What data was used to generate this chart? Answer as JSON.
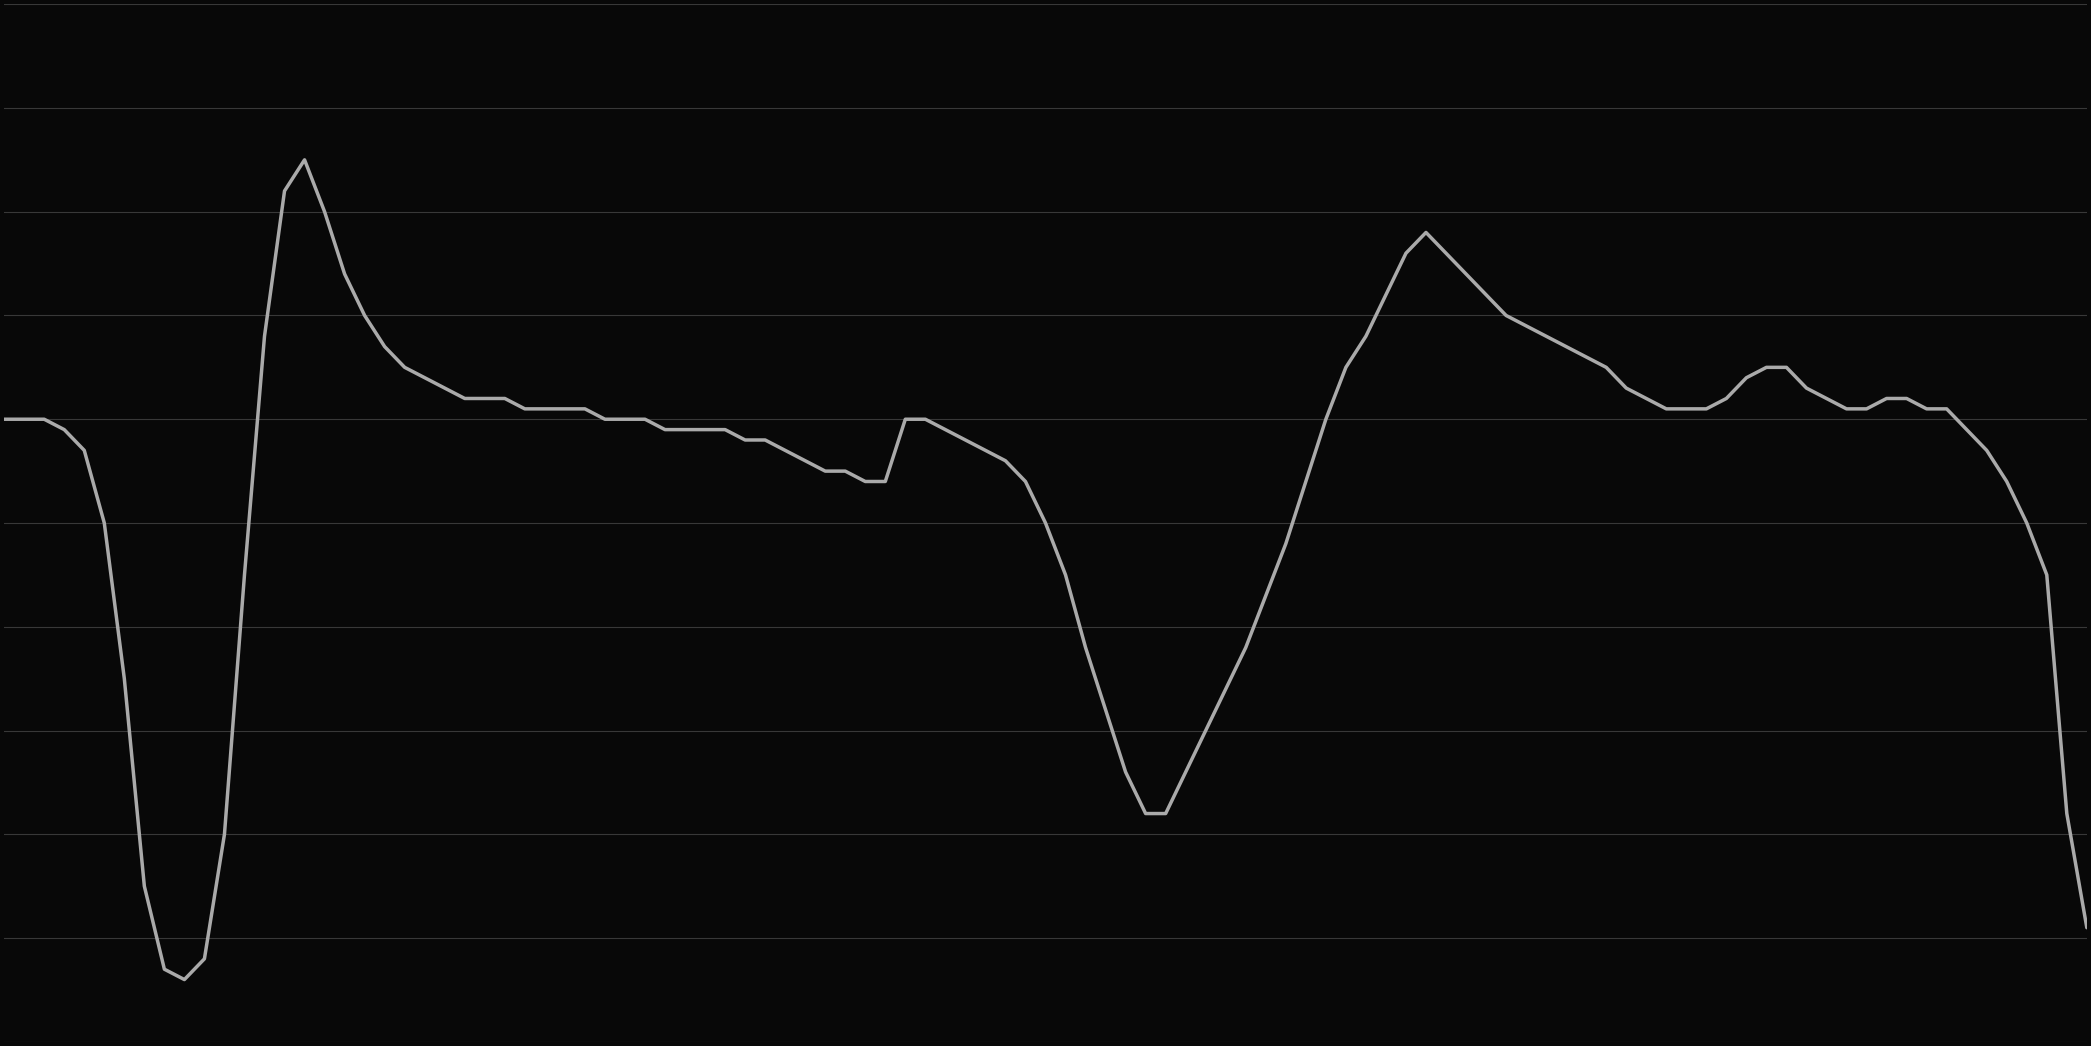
{
  "background_color": "#080808",
  "line_color": "#aaaaaa",
  "grid_color": "#383838",
  "line_width": 2.5,
  "figsize": [
    20.91,
    10.46
  ],
  "dpi": 100,
  "ylim": [
    -40,
    60
  ],
  "ytick_values": [
    -40,
    -30,
    -20,
    -10,
    0,
    10,
    20,
    30,
    40,
    50,
    60
  ],
  "values_y": [
    20,
    20,
    20,
    19,
    17,
    10,
    -5,
    -25,
    -33,
    -34,
    -32,
    -20,
    5,
    28,
    42,
    45,
    40,
    34,
    30,
    27,
    25,
    24,
    23,
    22,
    22,
    22,
    21,
    21,
    21,
    21,
    20,
    20,
    20,
    19,
    19,
    19,
    19,
    18,
    18,
    17,
    16,
    15,
    15,
    14,
    14,
    20,
    20,
    19,
    18,
    17,
    16,
    14,
    10,
    5,
    -2,
    -8,
    -14,
    -18,
    -18,
    -14,
    -10,
    -6,
    -2,
    3,
    8,
    14,
    20,
    25,
    28,
    32,
    36,
    38,
    36,
    34,
    32,
    30,
    29,
    28,
    27,
    26,
    25,
    23,
    22,
    21,
    21,
    21,
    22,
    24,
    25,
    25,
    23,
    22,
    21,
    21,
    22,
    22,
    21,
    21,
    19,
    17,
    14,
    10,
    5,
    -18,
    -29
  ]
}
